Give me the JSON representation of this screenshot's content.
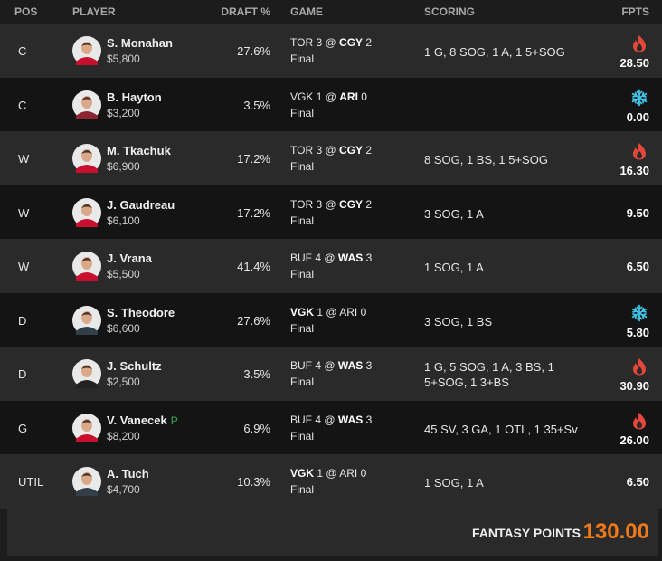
{
  "header": {
    "pos": "POS",
    "player": "PLAYER",
    "draft": "DRAFT %",
    "game": "GAME",
    "scoring": "SCORING",
    "fpts": "FPTS"
  },
  "rows": [
    {
      "pos": "C",
      "name": "S. Monahan",
      "salary": "$5,800",
      "draft": "27.6%",
      "game": {
        "away_team": "TOR",
        "away_score": "3",
        "separator": "@",
        "home_team": "CGY",
        "home_score": "2",
        "player_side": "home"
      },
      "status": "Final",
      "scoring": "1 G, 8 SOG, 1 A, 1 5+SOG",
      "fpts": "28.50",
      "icon": "fire",
      "jersey": "#c8102e"
    },
    {
      "pos": "C",
      "name": "B. Hayton",
      "salary": "$3,200",
      "draft": "3.5%",
      "game": {
        "away_team": "VGK",
        "away_score": "1",
        "separator": "@",
        "home_team": "ARI",
        "home_score": "0",
        "player_side": "home"
      },
      "status": "Final",
      "scoring": "",
      "fpts": "0.00",
      "icon": "snow",
      "jersey": "#8c2633"
    },
    {
      "pos": "W",
      "name": "M. Tkachuk",
      "salary": "$6,900",
      "draft": "17.2%",
      "game": {
        "away_team": "TOR",
        "away_score": "3",
        "separator": "@",
        "home_team": "CGY",
        "home_score": "2",
        "player_side": "home"
      },
      "status": "Final",
      "scoring": "8 SOG, 1 BS, 1 5+SOG",
      "fpts": "16.30",
      "icon": "fire",
      "jersey": "#c8102e"
    },
    {
      "pos": "W",
      "name": "J. Gaudreau",
      "salary": "$6,100",
      "draft": "17.2%",
      "game": {
        "away_team": "TOR",
        "away_score": "3",
        "separator": "@",
        "home_team": "CGY",
        "home_score": "2",
        "player_side": "home"
      },
      "status": "Final",
      "scoring": "3 SOG, 1 A",
      "fpts": "9.50",
      "icon": null,
      "jersey": "#c8102e"
    },
    {
      "pos": "W",
      "name": "J. Vrana",
      "salary": "$5,500",
      "draft": "41.4%",
      "game": {
        "away_team": "BUF",
        "away_score": "4",
        "separator": "@",
        "home_team": "WAS",
        "home_score": "3",
        "player_side": "home"
      },
      "status": "Final",
      "scoring": "1 SOG, 1 A",
      "fpts": "6.50",
      "icon": null,
      "jersey": "#c8102e"
    },
    {
      "pos": "D",
      "name": "S. Theodore",
      "salary": "$6,600",
      "draft": "27.6%",
      "game": {
        "away_team": "VGK",
        "away_score": "1",
        "separator": "@",
        "home_team": "ARI",
        "home_score": "0",
        "player_side": "away"
      },
      "status": "Final",
      "scoring": "3 SOG, 1 BS",
      "fpts": "5.80",
      "icon": "snow",
      "jersey": "#333f48"
    },
    {
      "pos": "D",
      "name": "J. Schultz",
      "salary": "$2,500",
      "draft": "3.5%",
      "game": {
        "away_team": "BUF",
        "away_score": "4",
        "separator": "@",
        "home_team": "WAS",
        "home_score": "3",
        "player_side": "home"
      },
      "status": "Final",
      "scoring": "1 G, 5 SOG, 1 A, 3 BS, 1 5+SOG, 1 3+BS",
      "fpts": "30.90",
      "icon": "fire",
      "jersey": "#222222"
    },
    {
      "pos": "G",
      "name": "V. Vanecek",
      "tag": "P",
      "salary": "$8,200",
      "draft": "6.9%",
      "game": {
        "away_team": "BUF",
        "away_score": "4",
        "separator": "@",
        "home_team": "WAS",
        "home_score": "3",
        "player_side": "home"
      },
      "status": "Final",
      "scoring": "45 SV, 3 GA, 1 OTL, 1 35+Sv",
      "fpts": "26.00",
      "icon": "fire",
      "jersey": "#c8102e"
    },
    {
      "pos": "UTIL",
      "name": "A. Tuch",
      "salary": "$4,700",
      "draft": "10.3%",
      "game": {
        "away_team": "VGK",
        "away_score": "1",
        "separator": "@",
        "home_team": "ARI",
        "home_score": "0",
        "player_side": "away"
      },
      "status": "Final",
      "scoring": "1 SOG, 1 A",
      "fpts": "6.50",
      "icon": null,
      "jersey": "#333f48"
    }
  ],
  "footer": {
    "label": "FANTASY POINTS",
    "total": "130.00"
  }
}
